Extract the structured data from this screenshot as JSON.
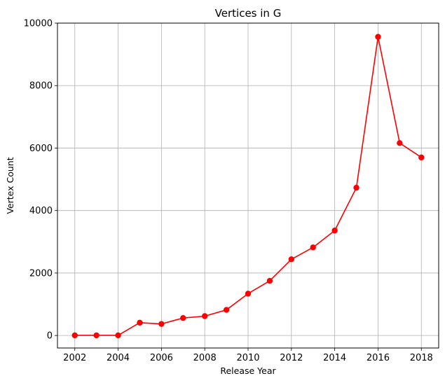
{
  "chart_data": {
    "type": "line",
    "title": "Vertices in G",
    "xlabel": "Release Year",
    "ylabel": "Vertex Count",
    "xlim": [
      2001.2,
      2018.8
    ],
    "ylim": [
      -400,
      10000
    ],
    "xticks": [
      2002,
      2004,
      2006,
      2008,
      2010,
      2012,
      2014,
      2016,
      2018
    ],
    "yticks": [
      0,
      2000,
      4000,
      6000,
      8000,
      10000
    ],
    "grid": true,
    "series": [
      {
        "name": "Vertex Count",
        "color": "#ff0000",
        "marker": "circle",
        "x": [
          2002,
          2003,
          2004,
          2005,
          2006,
          2007,
          2008,
          2009,
          2010,
          2011,
          2012,
          2013,
          2014,
          2015,
          2016,
          2017,
          2018
        ],
        "y": [
          5,
          5,
          5,
          410,
          370,
          560,
          620,
          820,
          1340,
          1750,
          2440,
          2820,
          3360,
          4730,
          9560,
          6160,
          5700
        ]
      }
    ]
  }
}
